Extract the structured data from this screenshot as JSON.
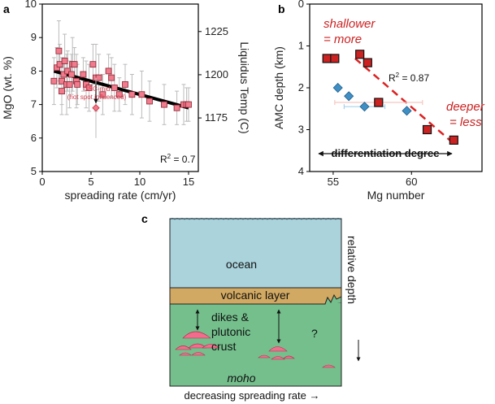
{
  "panel_a": {
    "letter": "a",
    "right_axis_label": "Liquidus Temp (C)",
    "right_ticks": [
      "1225",
      "1200",
      "1175"
    ],
    "annotation_line1": "GSC-mid",
    "annotation_line2": "(hot spot influenced)",
    "r2_label": "R",
    "r2_sup": "2",
    "r2_value": " = 0.7",
    "colors": {
      "marker": "#f07b8c",
      "outlier": "#d43b4d",
      "error": "#bbbbbb",
      "fit": "#000000"
    }
  },
  "panel_b": {
    "letter": "b",
    "label_shallow_1": "shallower",
    "label_shallow_2": "= more",
    "label_deep_1": "deeper",
    "label_deep_2": "= less",
    "r2_label": "R",
    "r2_sup": "2",
    "r2_value": " = 0.87",
    "arrow_label": "differentiation degree",
    "colors": {
      "square": "#cc2222",
      "diamond": "#3f8fc4",
      "trend": "#dd2222",
      "errx": "#f5c6bf",
      "errx_blue": "#a9d0ea"
    }
  },
  "panel_c": {
    "letter": "c",
    "ocean": "ocean",
    "volcanic": "volcanic layer",
    "dikes_1": "dikes &",
    "dikes_2": "plutonic",
    "dikes_3": "crust",
    "question": "?",
    "moho": "moho",
    "relative_depth": "relative depth",
    "bottom_label": "decreasing spreading rate →",
    "colors": {
      "ocean": "#aad3dc",
      "volcanic": "#d2a962",
      "crust": "#74bf8c",
      "magma": "#f06e8c"
    }
  },
  "chart_data": [
    {
      "type": "scatter",
      "title": "",
      "xlabel": "spreading rate (cm/yr)",
      "ylabel": "MgO (wt. %)",
      "xlim": [
        0,
        16
      ],
      "ylim": [
        5,
        10
      ],
      "xticks": [
        0,
        5,
        10,
        15
      ],
      "yticks": [
        5,
        6,
        7,
        8,
        9,
        10
      ],
      "x": [
        1.2,
        1.5,
        1.7,
        1.8,
        2.0,
        2.0,
        2.2,
        2.3,
        2.5,
        2.6,
        2.8,
        3.0,
        3.1,
        3.3,
        3.5,
        3.6,
        4.2,
        4.5,
        4.8,
        5.2,
        5.5,
        5.8,
        6.2,
        6.8,
        7.1,
        7.4,
        7.9,
        8.5,
        9.2,
        10.2,
        11.0,
        12.5,
        13.8,
        14.5,
        14.8,
        15.0
      ],
      "y": [
        7.7,
        8.1,
        8.6,
        8.2,
        7.7,
        7.4,
        7.9,
        8.3,
        7.6,
        8.0,
        7.6,
        7.9,
        8.2,
        8.2,
        7.7,
        7.6,
        7.9,
        7.6,
        7.5,
        8.2,
        7.8,
        7.8,
        7.3,
        8.0,
        7.8,
        7.5,
        7.3,
        7.6,
        7.3,
        7.3,
        7.1,
        7.0,
        6.9,
        7.0,
        7.0,
        7.0
      ],
      "yerr": [
        0.7,
        0.6,
        0.9,
        0.6,
        0.7,
        0.7,
        0.5,
        0.8,
        0.9,
        0.6,
        0.7,
        0.6,
        0.8,
        0.5,
        0.8,
        0.6,
        0.5,
        0.7,
        0.7,
        0.6,
        1.0,
        0.7,
        0.6,
        0.5,
        0.6,
        0.7,
        0.5,
        0.6,
        0.6,
        0.7,
        0.6,
        0.6,
        0.5,
        0.6,
        0.5,
        0.5
      ],
      "outlier": {
        "x": 5.5,
        "y": 6.9,
        "yerr": 0.9,
        "arrow_from": 7.7
      },
      "fit": {
        "x": [
          1.2,
          15.0
        ],
        "y": [
          8.0,
          6.9
        ]
      },
      "right_axis": {
        "label": "Liquidus Temp (C)",
        "ticks": [
          1225,
          1200,
          1175
        ],
        "tick_mgo": [
          9.18,
          7.89,
          6.6
        ]
      }
    },
    {
      "type": "scatter",
      "title": "",
      "xlabel": "Mg number",
      "ylabel": "AMC depth (km)",
      "xlim": [
        53.5,
        64.5
      ],
      "ylim": [
        0,
        4
      ],
      "y_inverted": true,
      "xticks": [
        55,
        60
      ],
      "yticks": [
        0,
        1,
        2,
        3,
        4
      ],
      "series": [
        {
          "name": "squares",
          "marker": "square",
          "x": [
            54.6,
            55.1,
            56.7,
            57.2,
            57.9,
            61.0,
            62.7
          ],
          "y": [
            1.3,
            1.3,
            1.2,
            1.4,
            2.35,
            3.0,
            3.25
          ],
          "xerr": [
            0,
            0,
            0,
            0,
            2.8,
            0,
            0
          ]
        },
        {
          "name": "diamonds",
          "marker": "diamond",
          "x": [
            55.3,
            56.0,
            57.0,
            59.7
          ],
          "y": [
            2.0,
            2.2,
            2.45,
            2.55
          ],
          "xerr": [
            0,
            0,
            1.3,
            0
          ]
        }
      ],
      "trend": {
        "x": [
          56.4,
          62.6
        ],
        "y": [
          1.3,
          3.3
        ]
      }
    }
  ]
}
